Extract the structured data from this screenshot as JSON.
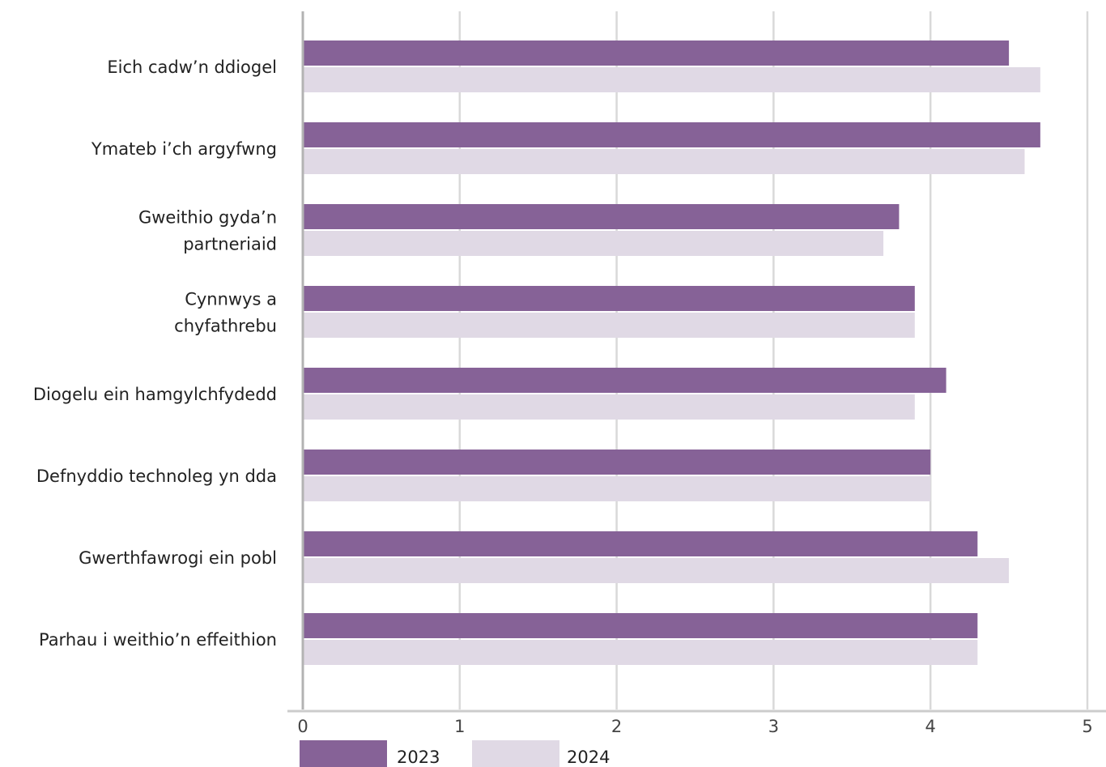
{
  "chart_data": {
    "type": "bar",
    "orientation": "horizontal",
    "categories": [
      "Eich cadw’n ddiogel",
      "Ymateb i’ch argyfwng",
      "Gweithio gyda’n partneriaid",
      "Cynnwys a chyfathrebu",
      "Diogelu ein hamgylchfydedd",
      "Defnyddio technoleg yn dda",
      "Gwerthfawrogi ein pobl",
      "Parhau i weithio’n effeithion"
    ],
    "category_lines": [
      [
        "Eich cadw’n ddiogel"
      ],
      [
        "Ymateb i’ch argyfwng"
      ],
      [
        "Gweithio gyda’n",
        "partneriaid"
      ],
      [
        "Cynnwys a",
        "chyfathrebu"
      ],
      [
        "Diogelu ein hamgylchfydedd"
      ],
      [
        "Defnyddio technoleg yn dda"
      ],
      [
        "Gwerthfawrogi ein pobl"
      ],
      [
        "Parhau i weithio’n effeithion"
      ]
    ],
    "series": [
      {
        "name": "2023",
        "color": "#866297",
        "values": [
          4.5,
          4.7,
          3.8,
          3.9,
          4.1,
          4.0,
          4.3,
          4.3
        ]
      },
      {
        "name": "2024",
        "color": "#e0d9e5",
        "values": [
          4.7,
          4.6,
          3.7,
          3.9,
          3.9,
          4.0,
          4.5,
          4.3
        ]
      }
    ],
    "xlim": [
      0,
      5
    ],
    "xticks": [
      "0",
      "1",
      "2",
      "3",
      "4",
      "5"
    ],
    "grid": true,
    "legend_position": "bottom-left",
    "title": "",
    "xlabel": "",
    "ylabel": ""
  }
}
